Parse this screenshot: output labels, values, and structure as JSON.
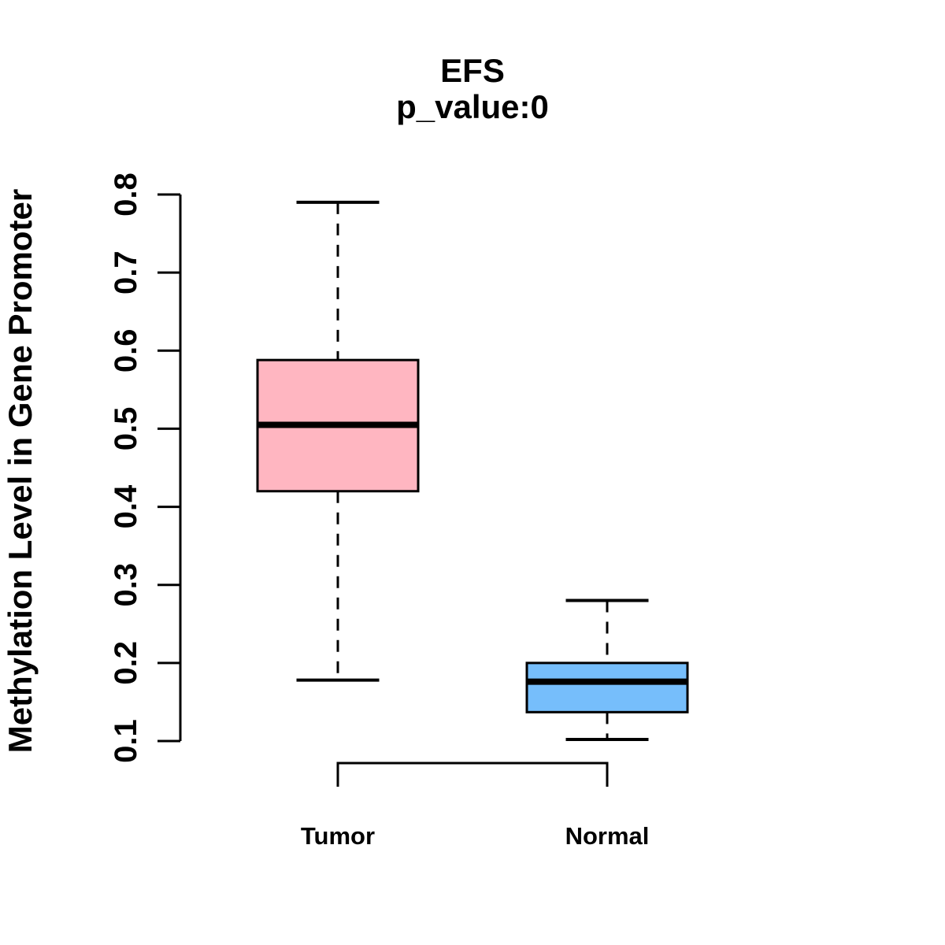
{
  "chart_data": {
    "type": "boxplot",
    "title": "EFS",
    "subtitle": "p_value:0",
    "ylabel": "Methylation Level in Gene Promoter",
    "xlabel": "",
    "categories": [
      "Tumor",
      "Normal"
    ],
    "ylim": [
      0.1,
      0.8
    ],
    "yticks": [
      0.1,
      0.2,
      0.3,
      0.4,
      0.5,
      0.6,
      0.7,
      0.8
    ],
    "grid": false,
    "legend": "none",
    "series": [
      {
        "name": "Tumor",
        "color": "#FFB6C1",
        "whisker_low": 0.178,
        "q1": 0.42,
        "median": 0.505,
        "q3": 0.588,
        "whisker_high": 0.79,
        "outliers": []
      },
      {
        "name": "Normal",
        "color": "#76BEFB",
        "whisker_low": 0.102,
        "q1": 0.137,
        "median": 0.176,
        "q3": 0.2,
        "whisker_high": 0.28,
        "outliers": []
      }
    ],
    "line_color": "#000000"
  }
}
